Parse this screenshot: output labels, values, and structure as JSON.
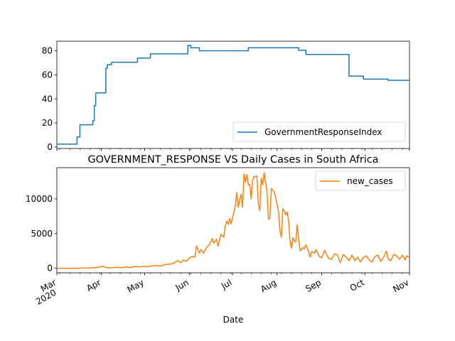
{
  "colors": {
    "series1": "#1f77b4",
    "series2": "#ff7f0e",
    "axis": "#000000"
  },
  "chart_data": [
    {
      "type": "line",
      "title": "",
      "xlabel": "",
      "ylabel": "",
      "ylim": [
        -1.2,
        88
      ],
      "yticks": [
        0,
        20,
        40,
        60,
        80
      ],
      "grid": false,
      "legend": {
        "position": "lower-right",
        "entries": [
          "GovernmentResponseIndex"
        ]
      },
      "x_range": [
        "2020-03-01",
        "2020-11-01"
      ],
      "series": [
        {
          "name": "GovernmentResponseIndex",
          "points": [
            [
              "2020-03-01",
              2.4
            ],
            [
              "2020-03-15",
              2.4
            ],
            [
              "2020-03-15",
              8.5
            ],
            [
              "2020-03-17",
              8.5
            ],
            [
              "2020-03-17",
              18.5
            ],
            [
              "2020-03-26",
              18.5
            ],
            [
              "2020-03-26",
              22
            ],
            [
              "2020-03-27",
              22
            ],
            [
              "2020-03-27",
              34.5
            ],
            [
              "2020-03-28",
              34.5
            ],
            [
              "2020-03-28",
              45
            ],
            [
              "2020-04-04",
              45
            ],
            [
              "2020-04-04",
              65.5
            ],
            [
              "2020-04-05",
              65.5
            ],
            [
              "2020-04-05",
              68.5
            ],
            [
              "2020-04-08",
              68.5
            ],
            [
              "2020-04-08",
              70.5
            ],
            [
              "2020-04-26",
              70.5
            ],
            [
              "2020-04-26",
              74
            ],
            [
              "2020-05-05",
              74
            ],
            [
              "2020-05-05",
              77.5
            ],
            [
              "2020-05-31",
              77.5
            ],
            [
              "2020-05-31",
              84.5
            ],
            [
              "2020-06-02",
              84.5
            ],
            [
              "2020-06-02",
              82.5
            ],
            [
              "2020-06-08",
              82.5
            ],
            [
              "2020-06-08",
              80
            ],
            [
              "2020-07-12",
              80
            ],
            [
              "2020-07-12",
              82.5
            ],
            [
              "2020-08-16",
              82.5
            ],
            [
              "2020-08-16",
              80.5
            ],
            [
              "2020-08-21",
              80.5
            ],
            [
              "2020-08-21",
              77
            ],
            [
              "2020-09-20",
              77
            ],
            [
              "2020-09-20",
              59
            ],
            [
              "2020-09-30",
              59
            ],
            [
              "2020-09-30",
              56.5
            ],
            [
              "2020-10-17",
              56.5
            ],
            [
              "2020-10-17",
              55.5
            ],
            [
              "2020-11-01",
              55.5
            ]
          ]
        }
      ]
    },
    {
      "type": "line",
      "title": "GOVERNMENT_RESPONSE VS Daily Cases in South Africa",
      "xlabel": "Date",
      "ylabel": "",
      "ylim": [
        -650,
        14500
      ],
      "yticks": [
        0,
        5000,
        10000
      ],
      "grid": false,
      "legend": {
        "position": "top-right",
        "entries": [
          "new_cases"
        ]
      },
      "x_range": [
        "2020-03-01",
        "2020-11-01"
      ],
      "xticks": [
        {
          "date": "2020-03-01",
          "label": "Mar",
          "sublabel": "2020"
        },
        {
          "date": "2020-04-01",
          "label": "Apr"
        },
        {
          "date": "2020-05-01",
          "label": "May"
        },
        {
          "date": "2020-06-01",
          "label": "Jun"
        },
        {
          "date": "2020-07-01",
          "label": "Jul"
        },
        {
          "date": "2020-08-01",
          "label": "Aug"
        },
        {
          "date": "2020-09-01",
          "label": "Sep"
        },
        {
          "date": "2020-10-01",
          "label": "Oct"
        },
        {
          "date": "2020-11-01",
          "label": "Nov"
        }
      ],
      "series": [
        {
          "name": "new_cases",
          "points": [
            [
              "2020-03-01",
              0
            ],
            [
              "2020-03-15",
              10
            ],
            [
              "2020-03-25",
              50
            ],
            [
              "2020-03-28",
              120
            ],
            [
              "2020-03-31",
              200
            ],
            [
              "2020-04-02",
              280
            ],
            [
              "2020-04-04",
              100
            ],
            [
              "2020-04-08",
              60
            ],
            [
              "2020-04-12",
              150
            ],
            [
              "2020-04-15",
              80
            ],
            [
              "2020-04-18",
              200
            ],
            [
              "2020-04-21",
              120
            ],
            [
              "2020-04-24",
              250
            ],
            [
              "2020-04-27",
              180
            ],
            [
              "2020-04-30",
              300
            ],
            [
              "2020-05-03",
              200
            ],
            [
              "2020-05-06",
              350
            ],
            [
              "2020-05-09",
              400
            ],
            [
              "2020-05-12",
              300
            ],
            [
              "2020-05-15",
              550
            ],
            [
              "2020-05-18",
              600
            ],
            [
              "2020-05-21",
              700
            ],
            [
              "2020-05-24",
              1100
            ],
            [
              "2020-05-26",
              800
            ],
            [
              "2020-05-28",
              1200
            ],
            [
              "2020-05-30",
              1000
            ],
            [
              "2020-06-01",
              1500
            ],
            [
              "2020-06-03",
              1700
            ],
            [
              "2020-06-05",
              1600
            ],
            [
              "2020-06-06",
              3200
            ],
            [
              "2020-06-08",
              2200
            ],
            [
              "2020-06-09",
              2700
            ],
            [
              "2020-06-11",
              2200
            ],
            [
              "2020-06-13",
              3000
            ],
            [
              "2020-06-15",
              3400
            ],
            [
              "2020-06-17",
              4300
            ],
            [
              "2020-06-18",
              3600
            ],
            [
              "2020-06-20",
              4200
            ],
            [
              "2020-06-21",
              3200
            ],
            [
              "2020-06-23",
              4900
            ],
            [
              "2020-06-25",
              4500
            ],
            [
              "2020-06-26",
              6100
            ],
            [
              "2020-06-27",
              6800
            ],
            [
              "2020-06-28",
              6300
            ],
            [
              "2020-06-29",
              7200
            ],
            [
              "2020-06-30",
              6400
            ],
            [
              "2020-07-02",
              8100
            ],
            [
              "2020-07-03",
              9000
            ],
            [
              "2020-07-04",
              10900
            ],
            [
              "2020-07-05",
              8800
            ],
            [
              "2020-07-06",
              9800
            ],
            [
              "2020-07-07",
              10700
            ],
            [
              "2020-07-08",
              8800
            ],
            [
              "2020-07-09",
              13600
            ],
            [
              "2020-07-10",
              12400
            ],
            [
              "2020-07-11",
              13500
            ],
            [
              "2020-07-12",
              12000
            ],
            [
              "2020-07-13",
              12100
            ],
            [
              "2020-07-14",
              10000
            ],
            [
              "2020-07-15",
              12700
            ],
            [
              "2020-07-16",
              13200
            ],
            [
              "2020-07-18",
              13300
            ],
            [
              "2020-07-19",
              9200
            ],
            [
              "2020-07-20",
              8300
            ],
            [
              "2020-07-21",
              13000
            ],
            [
              "2020-07-22",
              12000
            ],
            [
              "2020-07-23",
              13800
            ],
            [
              "2020-07-25",
              11000
            ],
            [
              "2020-07-26",
              7100
            ],
            [
              "2020-07-27",
              7200
            ],
            [
              "2020-07-28",
              11500
            ],
            [
              "2020-07-30",
              11000
            ],
            [
              "2020-07-31",
              10200
            ],
            [
              "2020-08-02",
              8200
            ],
            [
              "2020-08-03",
              5400
            ],
            [
              "2020-08-04",
              4500
            ],
            [
              "2020-08-05",
              8600
            ],
            [
              "2020-08-06",
              8300
            ],
            [
              "2020-08-07",
              7700
            ],
            [
              "2020-08-08",
              8100
            ],
            [
              "2020-08-09",
              6900
            ],
            [
              "2020-08-10",
              3900
            ],
            [
              "2020-08-11",
              2900
            ],
            [
              "2020-08-12",
              4400
            ],
            [
              "2020-08-13",
              3900
            ],
            [
              "2020-08-14",
              3800
            ],
            [
              "2020-08-15",
              6300
            ],
            [
              "2020-08-16",
              4200
            ],
            [
              "2020-08-17",
              2500
            ],
            [
              "2020-08-19",
              3000
            ],
            [
              "2020-08-20",
              2800
            ],
            [
              "2020-08-21",
              3400
            ],
            [
              "2020-08-23",
              2300
            ],
            [
              "2020-08-24",
              1600
            ],
            [
              "2020-08-25",
              2400
            ],
            [
              "2020-08-27",
              2200
            ],
            [
              "2020-08-28",
              2700
            ],
            [
              "2020-08-30",
              1800
            ],
            [
              "2020-09-01",
              1500
            ],
            [
              "2020-09-03",
              2600
            ],
            [
              "2020-09-05",
              1700
            ],
            [
              "2020-09-06",
              1400
            ],
            [
              "2020-09-08",
              1300
            ],
            [
              "2020-09-10",
              2100
            ],
            [
              "2020-09-12",
              1900
            ],
            [
              "2020-09-14",
              800
            ],
            [
              "2020-09-16",
              2000
            ],
            [
              "2020-09-18",
              1600
            ],
            [
              "2020-09-20",
              1100
            ],
            [
              "2020-09-22",
              1900
            ],
            [
              "2020-09-24",
              1100
            ],
            [
              "2020-09-26",
              1600
            ],
            [
              "2020-09-28",
              900
            ],
            [
              "2020-09-30",
              1600
            ],
            [
              "2020-10-02",
              1800
            ],
            [
              "2020-10-04",
              1200
            ],
            [
              "2020-10-06",
              900
            ],
            [
              "2020-10-08",
              1700
            ],
            [
              "2020-10-10",
              1900
            ],
            [
              "2020-10-12",
              1000
            ],
            [
              "2020-10-14",
              1600
            ],
            [
              "2020-10-16",
              2500
            ],
            [
              "2020-10-17",
              1400
            ],
            [
              "2020-10-19",
              1100
            ],
            [
              "2020-10-21",
              2000
            ],
            [
              "2020-10-23",
              1800
            ],
            [
              "2020-10-25",
              1300
            ],
            [
              "2020-10-27",
              1900
            ],
            [
              "2020-10-29",
              1200
            ],
            [
              "2020-10-30",
              1800
            ],
            [
              "2020-11-01",
              1600
            ]
          ]
        }
      ]
    }
  ]
}
